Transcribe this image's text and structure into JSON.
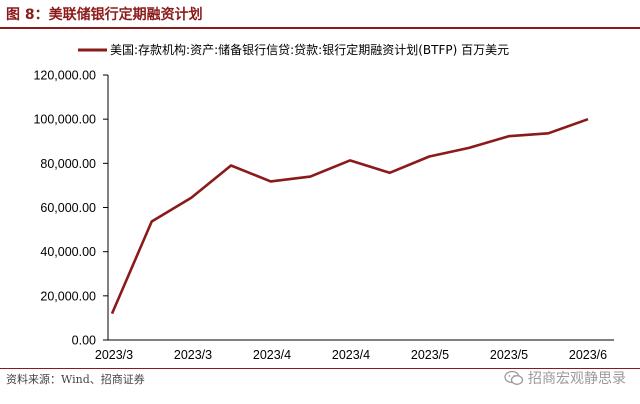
{
  "header": {
    "title": "图 8：美联储银行定期融资计划"
  },
  "footer": {
    "source": "资料来源：Wind、招商证券",
    "watermark": "招商宏观静思录"
  },
  "colors": {
    "accent": "#8B1A1A",
    "series_line": "#8B1A1A",
    "axis": "#000000"
  },
  "icons": {
    "watermark": "wechat-icon"
  },
  "chart_data": {
    "type": "line",
    "title": "",
    "xlabel": "",
    "ylabel": "",
    "ylim": [
      0,
      120000
    ],
    "yticks": [
      "0.00",
      "20,000.00",
      "40,000.00",
      "60,000.00",
      "80,000.00",
      "100,000.00",
      "120,000.00"
    ],
    "xtick_labels": [
      "2023/3",
      "2023/3",
      "2023/4",
      "2023/4",
      "2023/5",
      "2023/5",
      "2023/6"
    ],
    "legend_position": "top",
    "grid": false,
    "series": [
      {
        "name": "美国:存款机构:资产:储备银行信贷:贷款:银行定期融资计划(BTFP) 百万美元",
        "values": [
          11943,
          53669,
          64403,
          79000,
          71837,
          73983,
          81335,
          75718,
          83100,
          87000,
          92300,
          93600,
          100000
        ]
      }
    ]
  }
}
